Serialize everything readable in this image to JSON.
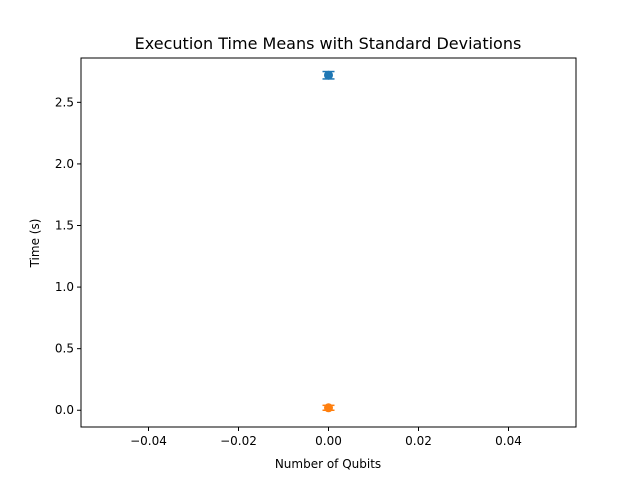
{
  "chart_data": {
    "type": "scatter",
    "title": "Execution Time Means with Standard Deviations",
    "xlabel": "Number of Qubits",
    "ylabel": "Time (s)",
    "xlim": [
      -0.055,
      0.055
    ],
    "ylim": [
      -0.136,
      2.86
    ],
    "x_ticks": [
      -0.04,
      -0.02,
      0.0,
      0.02,
      0.04
    ],
    "x_tick_labels": [
      "−0.04",
      "−0.02",
      "0.00",
      "0.02",
      "0.04"
    ],
    "y_ticks": [
      0.0,
      0.5,
      1.0,
      1.5,
      2.0,
      2.5
    ],
    "y_tick_labels": [
      "0.0",
      "0.5",
      "1.0",
      "1.5",
      "2.0",
      "2.5"
    ],
    "grid": false,
    "series": [
      {
        "color": "#1f77b4",
        "x": [
          0.0
        ],
        "y": [
          2.72
        ],
        "yerr": [
          0.03
        ]
      },
      {
        "color": "#ff7f0e",
        "x": [
          0.0
        ],
        "y": [
          0.02
        ],
        "yerr": [
          0.02
        ]
      }
    ]
  }
}
